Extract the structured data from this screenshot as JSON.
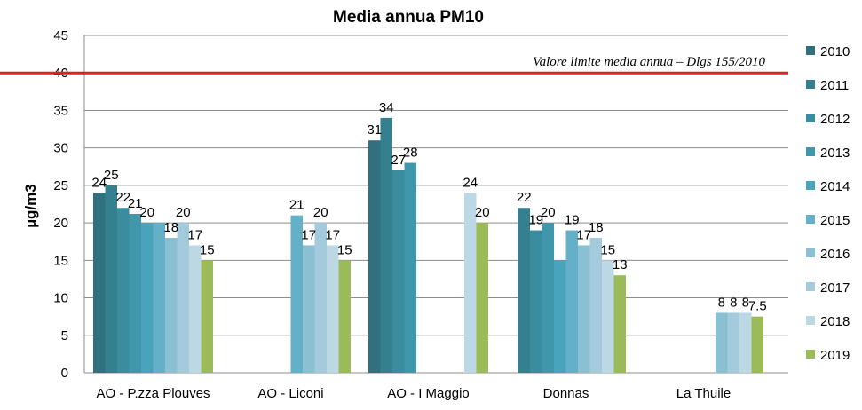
{
  "chart_data": {
    "type": "bar",
    "title": "Media annua PM10",
    "ylabel": "µg/m3",
    "xlabel": "",
    "ylim": [
      0,
      45
    ],
    "yticks": [
      0,
      5,
      10,
      15,
      20,
      25,
      30,
      35,
      40,
      45
    ],
    "grid": true,
    "legend_placement": "right",
    "categories": [
      "AO - P.zza Plouves",
      "AO - Liconi",
      "AO - I  Maggio",
      "Donnas",
      "La Thuile"
    ],
    "series": [
      {
        "name": "2010",
        "color": "#31707f",
        "values": [
          24,
          null,
          31,
          null,
          null
        ],
        "labels": [
          "24",
          null,
          "31",
          null,
          null
        ]
      },
      {
        "name": "2011",
        "color": "#35808f",
        "values": [
          25,
          null,
          34,
          22,
          null
        ],
        "labels": [
          "25",
          null,
          "34",
          "22",
          null
        ]
      },
      {
        "name": "2012",
        "color": "#3a8c9e",
        "values": [
          22,
          null,
          27,
          19,
          null
        ],
        "labels": [
          "22",
          null,
          "27",
          "19",
          null
        ]
      },
      {
        "name": "2013",
        "color": "#4096ab",
        "values": [
          21.2,
          null,
          28,
          20,
          null
        ],
        "labels": [
          "21",
          null,
          "28",
          "20",
          null
        ]
      },
      {
        "name": "2014",
        "color": "#4aa3bd",
        "values": [
          20,
          null,
          null,
          15,
          null
        ],
        "labels": [
          "20",
          null,
          null,
          null,
          null
        ]
      },
      {
        "name": "2015",
        "color": "#64b0c8",
        "values": [
          20,
          21,
          null,
          19,
          null
        ],
        "labels": [
          null,
          "21",
          null,
          "19",
          null
        ]
      },
      {
        "name": "2016",
        "color": "#8bbfd2",
        "values": [
          18,
          17,
          null,
          17,
          8
        ],
        "labels": [
          "18",
          "17",
          null,
          "17",
          "8"
        ]
      },
      {
        "name": "2017",
        "color": "#a3cbdc",
        "values": [
          20,
          20,
          null,
          18,
          8
        ],
        "labels": [
          "20",
          "20",
          null,
          "18",
          "8"
        ]
      },
      {
        "name": "2018",
        "color": "#bcd8e5",
        "values": [
          17,
          17,
          24,
          15,
          8
        ],
        "labels": [
          "17",
          "17",
          "24",
          "15",
          "8"
        ]
      },
      {
        "name": "2019",
        "color": "#9bbb59",
        "values": [
          15,
          15,
          20,
          13,
          7.5
        ],
        "labels": [
          "15",
          "15",
          "20",
          "13",
          "7.5"
        ]
      }
    ],
    "reference_line": {
      "value": 40,
      "label": "Valore limite media annua – Dlgs 155/2010",
      "color": "#e02020"
    }
  }
}
